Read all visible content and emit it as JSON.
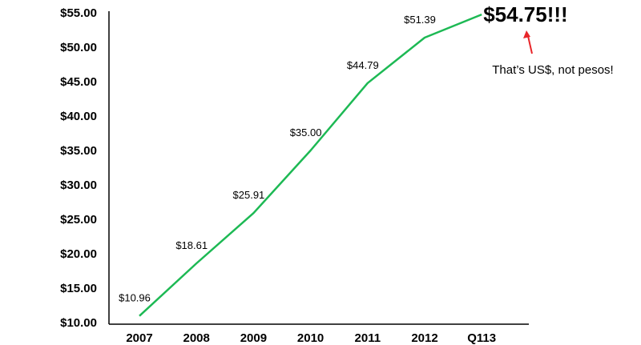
{
  "chart_data": {
    "type": "line",
    "categories": [
      "2007",
      "2008",
      "2009",
      "2010",
      "2011",
      "2012",
      "Q113"
    ],
    "series": [
      {
        "values": [
          10.96,
          18.61,
          25.91,
          35.0,
          44.79,
          51.39,
          54.75
        ]
      }
    ],
    "data_labels": [
      "$10.96",
      "$18.61",
      "$25.91",
      "$35.00",
      "$44.79",
      "$51.39",
      "$54.75!!!"
    ],
    "y_ticks": [
      "$10.00",
      "$15.00",
      "$20.00",
      "$25.00",
      "$30.00",
      "$35.00",
      "$40.00",
      "$45.00",
      "$50.00",
      "$55.00"
    ],
    "ylim": [
      10,
      55
    ],
    "line_color": "#1db954",
    "annotation": {
      "text": "That’s US$, not pesos!",
      "arrow_color": "#e8262a"
    },
    "grid": false,
    "legend": "none"
  }
}
